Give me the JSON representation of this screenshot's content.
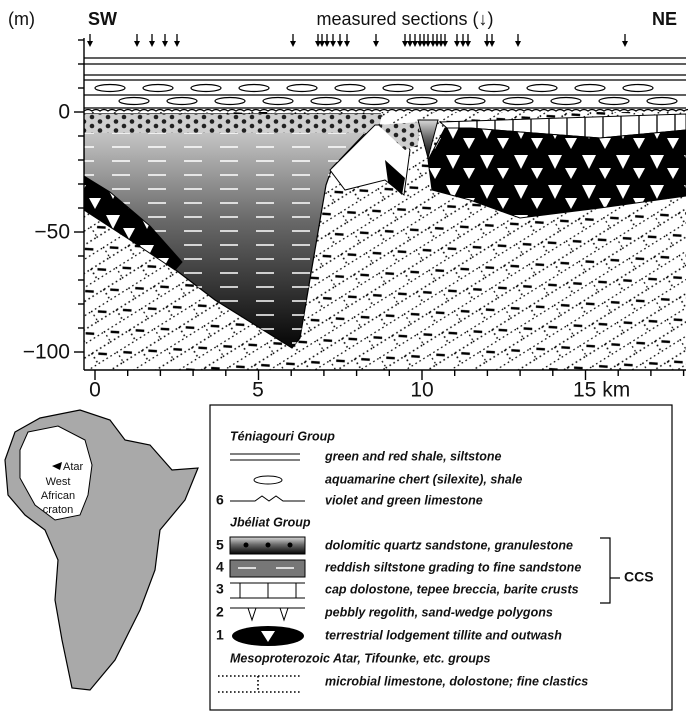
{
  "header": {
    "y_unit": "(m)",
    "left_end": "SW",
    "right_end": "NE",
    "sections_label": "measured sections (↓)"
  },
  "y_axis": {
    "tick_labels": [
      "0",
      "−50",
      "−100"
    ]
  },
  "x_axis": {
    "tick_labels": [
      "0",
      "5",
      "10",
      "15 km"
    ]
  },
  "map": {
    "labels": [
      "Atar",
      "West",
      "African",
      "craton"
    ]
  },
  "legend": {
    "groups": [
      {
        "title": "Téniagouri Group",
        "items": [
          {
            "text": "green and red shale, siltstone"
          },
          {
            "text": "aquamarine chert (silexite), shale"
          },
          {
            "number": "6",
            "text": "violet and green limestone"
          }
        ]
      },
      {
        "title": "Jbéliat Group",
        "items": [
          {
            "number": "5",
            "text": "dolomitic quartz sandstone, granulestone"
          },
          {
            "number": "4",
            "text": "reddish siltstone grading to fine sandstone"
          },
          {
            "number": "3",
            "text": "cap dolostone, tepee breccia, barite crusts"
          },
          {
            "number": "2",
            "text": "pebbly regolith, sand-wedge polygons"
          },
          {
            "number": "1",
            "text": "terrestrial lodgement tillite and outwash"
          }
        ]
      },
      {
        "title": "Mesoproterozoic Atar, Tifounke, etc. groups",
        "items": [
          {
            "text": "microbial limestone, dolostone; fine clastics"
          }
        ]
      }
    ],
    "bracket_label": "CCS"
  }
}
